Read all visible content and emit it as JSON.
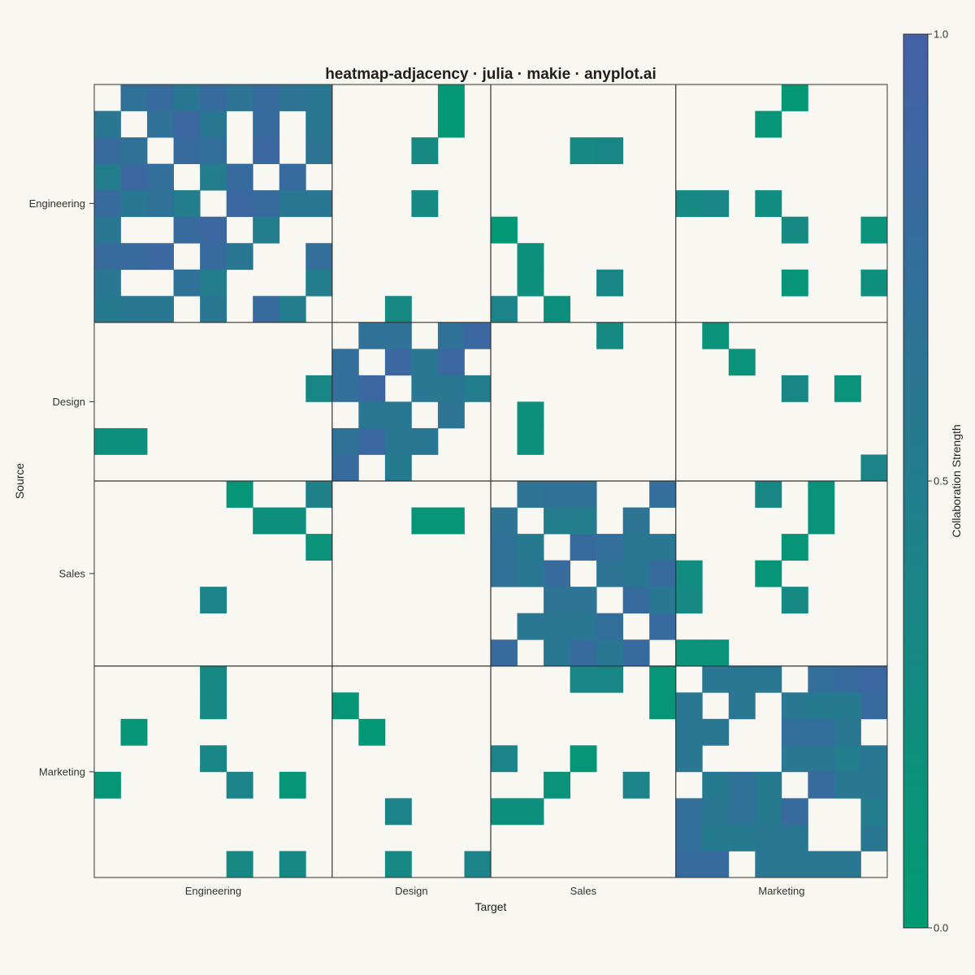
{
  "chart_data": {
    "type": "heatmap",
    "title": "heatmap-adjacency · julia · makie · anyplot.ai",
    "xlabel": "Target",
    "ylabel": "Source",
    "groups": [
      {
        "name": "Engineering",
        "size": 9
      },
      {
        "name": "Design",
        "size": 6
      },
      {
        "name": "Sales",
        "size": 7
      },
      {
        "name": "Marketing",
        "size": 8
      }
    ],
    "colorbar": {
      "label": "Collaboration Strength",
      "min": 0.0,
      "max": 1.0,
      "ticks": [
        "0.0",
        "0.5",
        "1.0"
      ],
      "colors": [
        "#009b72",
        "#455fa8"
      ]
    },
    "matrix": [
      [
        0,
        0.7,
        0.8,
        0.6,
        0.8,
        0.65,
        0.8,
        0.65,
        0.6,
        0,
        0,
        0,
        0,
        0.05,
        0,
        0,
        0,
        0,
        0,
        0,
        0,
        0,
        0,
        0,
        0,
        0,
        0.05,
        0,
        0,
        0
      ],
      [
        0.6,
        0,
        0.7,
        0.85,
        0.6,
        0,
        0.8,
        0,
        0.6,
        0,
        0,
        0,
        0,
        0.05,
        0,
        0,
        0,
        0,
        0,
        0,
        0,
        0,
        0,
        0,
        0,
        0.1,
        0,
        0,
        0,
        0
      ],
      [
        0.8,
        0.7,
        0,
        0.8,
        0.75,
        0,
        0.85,
        0,
        0.65,
        0,
        0,
        0,
        0.3,
        0,
        0,
        0,
        0,
        0,
        0.3,
        0.35,
        0,
        0,
        0,
        0,
        0,
        0,
        0,
        0,
        0,
        0
      ],
      [
        0.5,
        0.85,
        0.75,
        0,
        0.5,
        0.8,
        0,
        0.8,
        0,
        0,
        0,
        0,
        0,
        0,
        0,
        0,
        0,
        0,
        0,
        0,
        0,
        0,
        0,
        0,
        0,
        0,
        0,
        0,
        0,
        0
      ],
      [
        0.8,
        0.6,
        0.7,
        0.5,
        0,
        0.85,
        0.8,
        0.6,
        0.6,
        0,
        0,
        0,
        0.3,
        0,
        0,
        0,
        0,
        0,
        0,
        0,
        0,
        0,
        0.3,
        0.35,
        0,
        0.25,
        0,
        0,
        0,
        0
      ],
      [
        0.6,
        0,
        0,
        0.8,
        0.85,
        0,
        0.5,
        0,
        0,
        0,
        0,
        0,
        0,
        0,
        0,
        0.05,
        0,
        0,
        0,
        0,
        0,
        0,
        0,
        0,
        0,
        0,
        0.3,
        0,
        0,
        0.15
      ],
      [
        0.8,
        0.8,
        0.85,
        0,
        0.8,
        0.6,
        0,
        0,
        0.75,
        0,
        0,
        0,
        0,
        0,
        0,
        0,
        0.2,
        0,
        0,
        0,
        0,
        0,
        0,
        0,
        0,
        0,
        0,
        0,
        0,
        0
      ],
      [
        0.6,
        0,
        0,
        0.7,
        0.5,
        0,
        0,
        0,
        0.5,
        0,
        0,
        0,
        0,
        0,
        0,
        0,
        0.2,
        0,
        0,
        0.35,
        0,
        0,
        0,
        0,
        0,
        0,
        0.1,
        0,
        0,
        0.2
      ],
      [
        0.55,
        0.6,
        0.6,
        0,
        0.6,
        0,
        0.8,
        0.5,
        0,
        0,
        0,
        0.3,
        0,
        0,
        0,
        0.4,
        0,
        0.2,
        0,
        0,
        0,
        0,
        0,
        0,
        0,
        0,
        0,
        0,
        0,
        0
      ],
      [
        0,
        0,
        0,
        0,
        0,
        0,
        0,
        0,
        0,
        0,
        0.7,
        0.7,
        0,
        0.7,
        0.85,
        0,
        0,
        0,
        0,
        0.3,
        0,
        0,
        0,
        0.15,
        0,
        0,
        0,
        0,
        0,
        0
      ],
      [
        0,
        0,
        0,
        0,
        0,
        0,
        0,
        0,
        0,
        0.75,
        0,
        0.85,
        0.6,
        0.85,
        0,
        0,
        0,
        0,
        0,
        0,
        0,
        0,
        0,
        0,
        0.15,
        0,
        0,
        0,
        0,
        0
      ],
      [
        0,
        0,
        0,
        0,
        0,
        0,
        0,
        0,
        0.35,
        0.75,
        0.85,
        0,
        0.6,
        0.6,
        0.5,
        0,
        0,
        0,
        0,
        0,
        0,
        0,
        0,
        0,
        0,
        0,
        0.35,
        0,
        0.15,
        0
      ],
      [
        0,
        0,
        0,
        0,
        0,
        0,
        0,
        0,
        0,
        0,
        0.6,
        0.6,
        0,
        0.65,
        0,
        0,
        0.2,
        0,
        0,
        0,
        0,
        0,
        0,
        0,
        0,
        0,
        0,
        0,
        0,
        0
      ],
      [
        0.2,
        0.2,
        0,
        0,
        0,
        0,
        0,
        0,
        0,
        0.7,
        0.85,
        0.6,
        0.6,
        0,
        0,
        0,
        0.2,
        0,
        0,
        0,
        0,
        0,
        0,
        0,
        0,
        0,
        0,
        0,
        0,
        0
      ],
      [
        0,
        0,
        0,
        0,
        0,
        0,
        0,
        0,
        0,
        0.8,
        0,
        0.55,
        0,
        0,
        0,
        0,
        0,
        0,
        0,
        0,
        0,
        0,
        0,
        0,
        0,
        0,
        0,
        0,
        0,
        0.4
      ],
      [
        0,
        0,
        0,
        0,
        0,
        0.1,
        0,
        0,
        0.45,
        0,
        0,
        0,
        0,
        0,
        0,
        0,
        0.65,
        0.7,
        0.7,
        0,
        0,
        0.75,
        0,
        0,
        0,
        0.35,
        0,
        0.15,
        0,
        0
      ],
      [
        0,
        0,
        0,
        0,
        0,
        0,
        0.2,
        0.2,
        0,
        0,
        0,
        0,
        0.1,
        0.1,
        0,
        0.65,
        0,
        0.5,
        0.5,
        0,
        0.65,
        0,
        0,
        0,
        0,
        0,
        0,
        0.15,
        0,
        0
      ],
      [
        0,
        0,
        0,
        0,
        0,
        0,
        0,
        0,
        0.15,
        0,
        0,
        0,
        0,
        0,
        0,
        0.7,
        0.55,
        0,
        0.8,
        0.75,
        0.6,
        0.6,
        0,
        0,
        0,
        0,
        0.1,
        0,
        0,
        0
      ],
      [
        0,
        0,
        0,
        0,
        0,
        0,
        0,
        0,
        0,
        0,
        0,
        0,
        0,
        0,
        0,
        0.7,
        0.6,
        0.8,
        0,
        0.65,
        0.6,
        0.8,
        0.25,
        0,
        0,
        0.1,
        0,
        0,
        0,
        0
      ],
      [
        0,
        0,
        0,
        0,
        0.4,
        0,
        0,
        0,
        0,
        0,
        0,
        0,
        0,
        0,
        0,
        0,
        0,
        0.65,
        0.65,
        0,
        0.8,
        0.6,
        0.3,
        0,
        0,
        0,
        0.3,
        0,
        0,
        0
      ],
      [
        0,
        0,
        0,
        0,
        0,
        0,
        0,
        0,
        0,
        0,
        0,
        0,
        0,
        0,
        0,
        0,
        0.6,
        0.6,
        0.6,
        0.75,
        0,
        0.8,
        0,
        0,
        0,
        0,
        0,
        0,
        0,
        0
      ],
      [
        0,
        0,
        0,
        0,
        0,
        0,
        0,
        0,
        0,
        0,
        0,
        0,
        0,
        0,
        0,
        0.8,
        0,
        0.6,
        0.8,
        0.6,
        0.8,
        0,
        0.15,
        0.15,
        0,
        0,
        0,
        0,
        0,
        0
      ],
      [
        0,
        0,
        0,
        0,
        0.3,
        0,
        0,
        0,
        0,
        0,
        0,
        0,
        0,
        0,
        0,
        0,
        0,
        0,
        0.35,
        0.35,
        0,
        0.1,
        0,
        0.6,
        0.6,
        0.6,
        0,
        0.75,
        0.8,
        0.85
      ],
      [
        0,
        0,
        0,
        0,
        0.3,
        0,
        0,
        0,
        0,
        0.1,
        0,
        0,
        0,
        0,
        0,
        0,
        0,
        0,
        0,
        0,
        0,
        0.1,
        0.6,
        0,
        0.6,
        0,
        0.6,
        0.55,
        0.55,
        0.8
      ],
      [
        0,
        0.1,
        0,
        0,
        0,
        0,
        0,
        0,
        0,
        0,
        0.05,
        0,
        0,
        0,
        0,
        0,
        0,
        0,
        0,
        0,
        0,
        0,
        0.6,
        0.6,
        0,
        0,
        0.75,
        0.75,
        0.6,
        0
      ],
      [
        0,
        0,
        0,
        0,
        0.35,
        0,
        0,
        0,
        0,
        0,
        0,
        0,
        0,
        0,
        0,
        0.4,
        0,
        0,
        0.1,
        0,
        0,
        0,
        0.6,
        0,
        0,
        0,
        0.6,
        0.6,
        0.5,
        0.6
      ],
      [
        0.1,
        0,
        0,
        0,
        0,
        0.4,
        0,
        0.1,
        0,
        0,
        0,
        0,
        0,
        0,
        0,
        0,
        0,
        0.15,
        0,
        0,
        0.4,
        0,
        0,
        0.55,
        0.7,
        0.55,
        0,
        0.8,
        0.6,
        0.6
      ],
      [
        0,
        0,
        0,
        0,
        0,
        0,
        0,
        0,
        0,
        0,
        0,
        0.4,
        0,
        0,
        0,
        0.2,
        0.2,
        0,
        0,
        0,
        0,
        0,
        0.75,
        0.6,
        0.7,
        0.55,
        0.8,
        0,
        0,
        0.5
      ],
      [
        0,
        0,
        0,
        0,
        0,
        0,
        0,
        0,
        0,
        0,
        0,
        0,
        0,
        0,
        0,
        0,
        0,
        0,
        0,
        0,
        0,
        0,
        0.75,
        0.55,
        0.55,
        0.6,
        0.6,
        0,
        0,
        0.6
      ],
      [
        0,
        0,
        0,
        0,
        0,
        0.3,
        0,
        0.3,
        0,
        0,
        0,
        0.3,
        0,
        0,
        0.4,
        0,
        0,
        0,
        0,
        0,
        0,
        0,
        0.8,
        0.8,
        0,
        0.6,
        0.6,
        0.6,
        0.6,
        0
      ]
    ]
  }
}
